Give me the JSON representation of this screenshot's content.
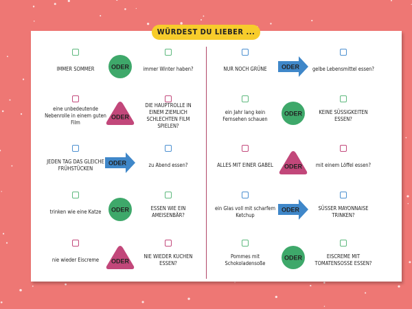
{
  "header": {
    "title": "WÜRDEST DU LIEBER ..."
  },
  "columns": [
    {
      "rows": [
        {
          "option_a": "IMMER SOMMER",
          "connector": "ODER",
          "shape": "circle",
          "option_b": "immer Winter haben?"
        },
        {
          "option_a": "eine unbedeutende Nebenrolle in einem guten Film",
          "connector": "ODER",
          "shape": "triangle",
          "option_b": "DIE HAUPTROLLE IN EINEM ZIEMLICH SCHLECHTEN FILM SPIELEN?"
        },
        {
          "option_a": "JEDEN TAG DAS GLEICHE FRÜHSTÜCKEN",
          "connector": "ODER",
          "shape": "arrow",
          "option_b": "zu Abend essen?"
        },
        {
          "option_a": "trinken wie eine Katze",
          "connector": "ODER",
          "shape": "circle",
          "option_b": "ESSEN WIE EIN AMEISENBÄR?"
        },
        {
          "option_a": "nie wieder Eiscreme",
          "connector": "ODER",
          "shape": "triangle",
          "option_b": "NIE WIEDER KUCHEN ESSEN?"
        }
      ]
    },
    {
      "rows": [
        {
          "option_a": "NUR NOCH GRÜNE",
          "connector": "ODER",
          "shape": "arrow",
          "option_b": "gelbe Lebensmittel essen?"
        },
        {
          "option_a": "ein Jahr lang kein Fernsehen schauen",
          "connector": "ODER",
          "shape": "circle",
          "option_b": "KEINE SÜSSIGKEITEN ESSEN?"
        },
        {
          "option_a": "ALLES MIT EINER GABEL",
          "connector": "ODER",
          "shape": "triangle",
          "option_b": "mit einem Löffel essen?"
        },
        {
          "option_a": "ein Glas voll mit scharfem Ketchup",
          "connector": "ODER",
          "shape": "arrow",
          "option_b": "SÜSSER MAYONNAISE TRINKEN?"
        },
        {
          "option_a": "Pommes mit Schokoladensoße",
          "connector": "ODER",
          "shape": "circle",
          "option_b": "EISCREME MIT TOMATENSOSSE ESSEN?"
        }
      ]
    }
  ]
}
